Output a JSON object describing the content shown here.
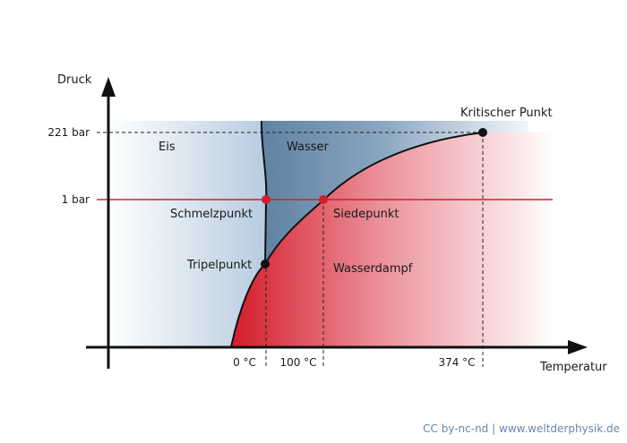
{
  "axes": {
    "y_label": "Druck",
    "x_label": "Temperatur",
    "y_ticks": [
      "221 bar",
      "1 bar"
    ],
    "x_ticks": [
      "0 °C",
      "100 °C",
      "374 °C"
    ]
  },
  "regions": {
    "ice": "Eis",
    "water": "Wasser",
    "vapor": "Wasserdampf"
  },
  "points": {
    "critical": "Kritischer Punkt",
    "triple": "Tripelpunkt",
    "melting": "Schmelzpunkt",
    "boiling": "Siedepunkt"
  },
  "colors": {
    "ice": "#b5cadf",
    "water": "#6e8fad",
    "vapor": "#d9212e",
    "isobar": "#d0202a"
  },
  "footer": {
    "license": "CC by-nc-nd",
    "separator": "|",
    "site": "www.weltderphysik.de"
  }
}
